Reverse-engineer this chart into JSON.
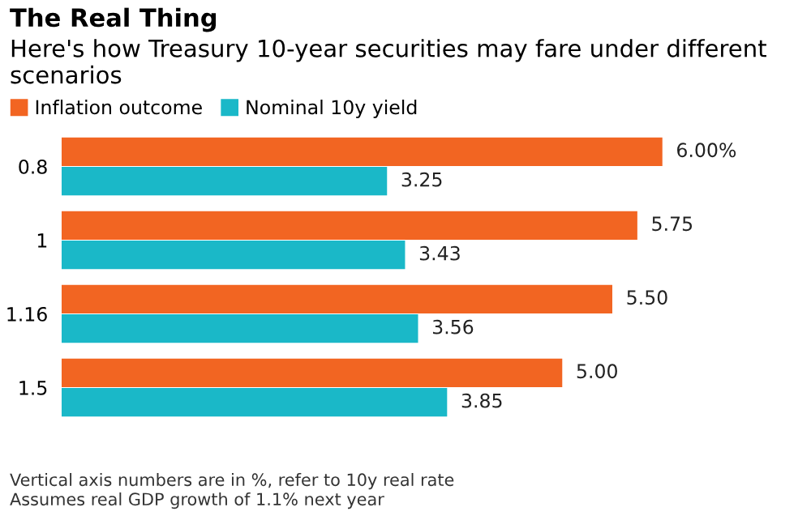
{
  "chart_data": {
    "type": "bar",
    "orientation": "horizontal",
    "title": "The Real Thing",
    "subtitle": "Here's how Treasury 10-year securities may fare under different scenarios",
    "categories": [
      "0.8",
      "1",
      "1.16",
      "1.5"
    ],
    "series": [
      {
        "name": "Inflation outcome",
        "color": "#f26522",
        "values": [
          6.0,
          5.75,
          5.5,
          5.0
        ],
        "value_labels": [
          "6.00%",
          "5.75",
          "5.50",
          "5.00"
        ]
      },
      {
        "name": "Nominal 10y yield",
        "color": "#1ab8c8",
        "values": [
          3.25,
          3.43,
          3.56,
          3.85
        ],
        "value_labels": [
          "3.25",
          "3.43",
          "3.56",
          "3.85"
        ]
      }
    ],
    "tick_labels": "y",
    "grid": false,
    "legend": "top left",
    "annotations": [
      "Vertical axis numbers are in %, refer to 10y real rate",
      "Assumes real GDP growth of 1.1% next year"
    ]
  }
}
